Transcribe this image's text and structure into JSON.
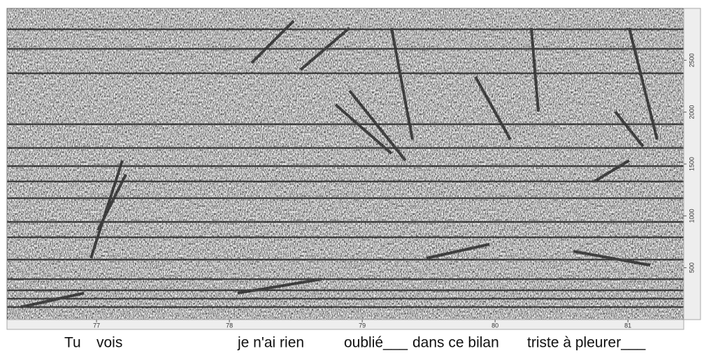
{
  "chart_data": {
    "type": "spectrogram",
    "xlim": [
      76.326,
      81.42
    ],
    "xticks": [
      77,
      78,
      79,
      80,
      81
    ],
    "ylim": [
      0,
      3000
    ],
    "yticks": [
      500,
      1000,
      1500,
      2000,
      2500
    ],
    "lyrics": [
      "Tu",
      "vois",
      "je n'ai rien",
      "oublié___",
      "dans ce bilan",
      "triste à pleurer___"
    ]
  }
}
